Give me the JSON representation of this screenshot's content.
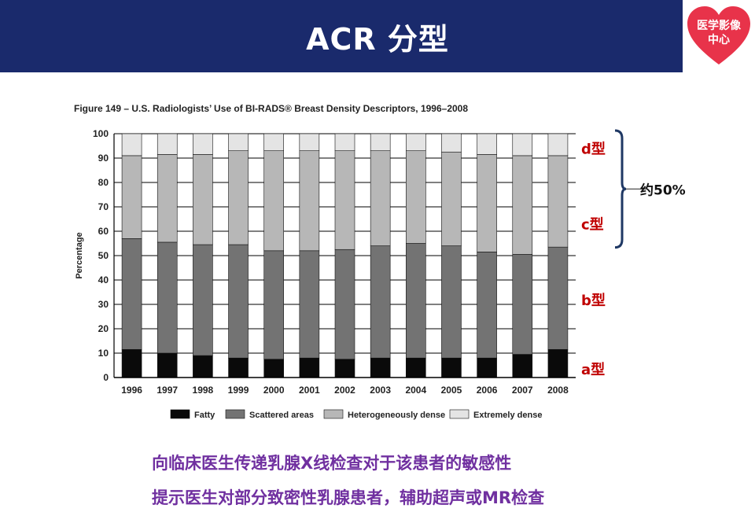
{
  "header": {
    "title": "ACR 分型"
  },
  "logo": {
    "line1": "医学影像",
    "line2": "中心"
  },
  "chart_data": {
    "type": "bar",
    "stacked": true,
    "title": "Figure 149 – U.S. Radiologists’ Use of BI-RADS® Breast Density Descriptors, 1996–2008",
    "xlabel": "",
    "ylabel": "Percentage",
    "ylim": [
      0,
      100
    ],
    "yticks": [
      "0",
      "10",
      "20",
      "30",
      "40",
      "50",
      "60",
      "70",
      "80",
      "90",
      "100"
    ],
    "grid": true,
    "legend_position": "bottom",
    "categories": [
      "1996",
      "1997",
      "1998",
      "1999",
      "2000",
      "2001",
      "2002",
      "2003",
      "2004",
      "2005",
      "2006",
      "2007",
      "2008"
    ],
    "series": [
      {
        "name": "Fatty",
        "color": "#0a0a0a",
        "values": [
          11.5,
          10,
          9,
          8,
          7.5,
          8,
          7.5,
          8,
          8,
          8,
          8,
          9.5,
          11.5
        ]
      },
      {
        "name": "Scattered areas",
        "color": "#737373",
        "values": [
          45.5,
          45.5,
          45.5,
          46.5,
          44.5,
          44,
          45,
          46,
          47,
          46,
          43.5,
          41,
          42
        ]
      },
      {
        "name": "Heterogeneously dense",
        "color": "#b7b7b7",
        "values": [
          34,
          36,
          37,
          38.5,
          41,
          41,
          40.5,
          39,
          38,
          38.5,
          40,
          40.5,
          37.5
        ]
      },
      {
        "name": "Extremely dense",
        "color": "#e4e4e4",
        "values": [
          9,
          8.5,
          8.5,
          7,
          7,
          7,
          7,
          7,
          7,
          7.5,
          8.5,
          9,
          9
        ]
      }
    ]
  },
  "annotations": {
    "types": [
      {
        "label": "d型",
        "y": 94
      },
      {
        "label": "c型",
        "y": 63
      },
      {
        "label": "b型",
        "y": 32
      },
      {
        "label": "a型",
        "y": 3.5
      }
    ],
    "brace_label": "约50%",
    "brace_range": [
      54,
      100
    ],
    "label_color": "#c00000",
    "brace_color": "#1f3864"
  },
  "footer": {
    "line1": "向临床医生传递乳腺X线检查对于该患者的敏感性",
    "line2": "提示医生对部分致密性乳腺患者，辅助超声或MR检查",
    "color": "#7030a0"
  }
}
